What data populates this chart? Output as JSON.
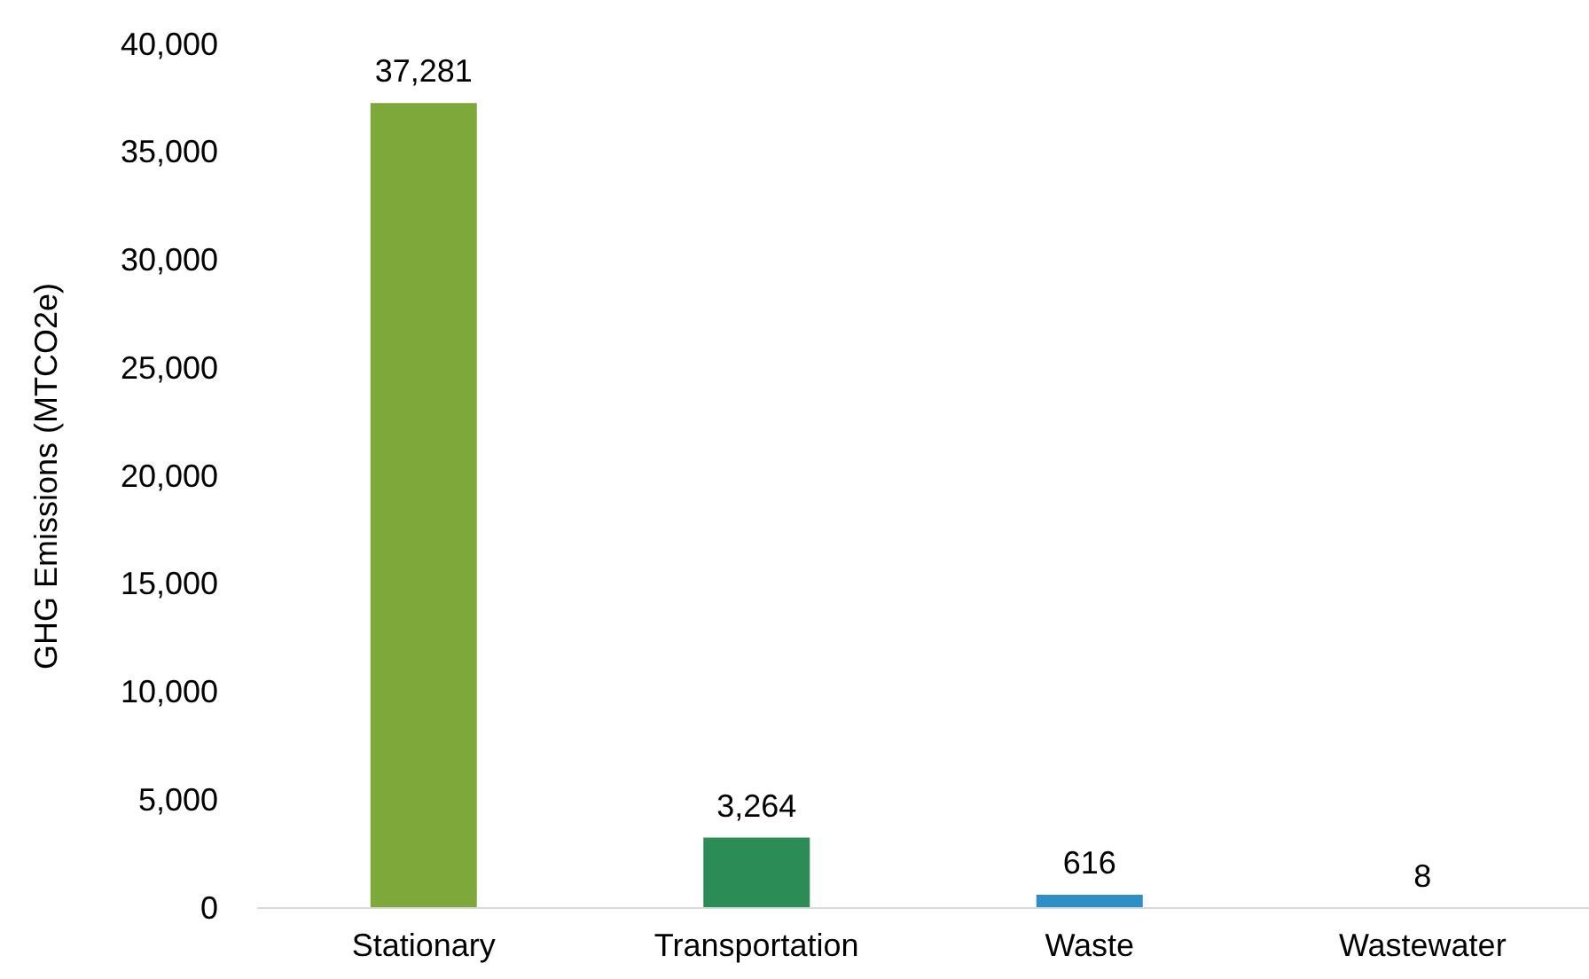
{
  "chart_data": {
    "type": "bar",
    "ylabel": "GHG Emissions (MTCO2e)",
    "categories": [
      "Stationary",
      "Transportation",
      "Waste",
      "Wastewater"
    ],
    "values": [
      37281,
      3264,
      616,
      8
    ],
    "colors": [
      "#7fa83a",
      "#2b8c55",
      "#2e8fc6",
      "#f0b323"
    ],
    "ylim": [
      0,
      40000
    ],
    "yticks": [
      0,
      {
        "value": 5000,
        "label": "5,000"
      },
      {
        "value": 10000,
        "label": "10,000"
      },
      {
        "value": 15000,
        "label": "15,000"
      },
      {
        "value": 20000,
        "label": "20,000"
      },
      {
        "value": 25000,
        "label": "25,000"
      },
      {
        "value": 30000,
        "label": "30,000"
      },
      {
        "value": 35000,
        "label": "35,000"
      },
      {
        "value": 40000,
        "label": "40,000"
      }
    ],
    "value_labels": [
      "37,281",
      "3,264",
      "616",
      "8"
    ],
    "grid": false
  }
}
